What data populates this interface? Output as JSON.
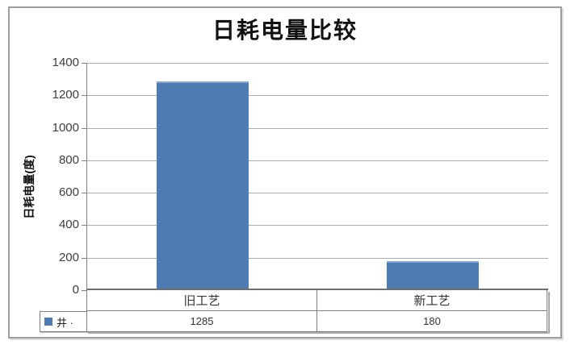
{
  "chart_data": {
    "type": "bar",
    "title": "日耗电量比较",
    "categories": [
      "旧工艺",
      "新工艺"
    ],
    "series": [
      {
        "name": "井 ·",
        "color": "#4d7cb3",
        "values": [
          1285,
          180
        ]
      }
    ],
    "xlabel": "",
    "ylabel": "日耗电量(度)",
    "ylim": [
      0,
      1400
    ],
    "yticks": [
      0,
      200,
      400,
      600,
      800,
      1000,
      1200,
      1400
    ],
    "grid": true,
    "legend_position": "bottom-left-table-key",
    "data_table": {
      "shown": true,
      "values_text": [
        "1285",
        "180"
      ]
    },
    "colors": {
      "bar": "#4d7cb3",
      "bar_highlight": "#84a8d0",
      "gridline": "#ababab",
      "axis": "#6f6f6f",
      "table_border": "#7f7f7f",
      "frame_border": "#9d9d9d",
      "tick_text": "#3d3d3d",
      "title_text": "#111111"
    }
  }
}
